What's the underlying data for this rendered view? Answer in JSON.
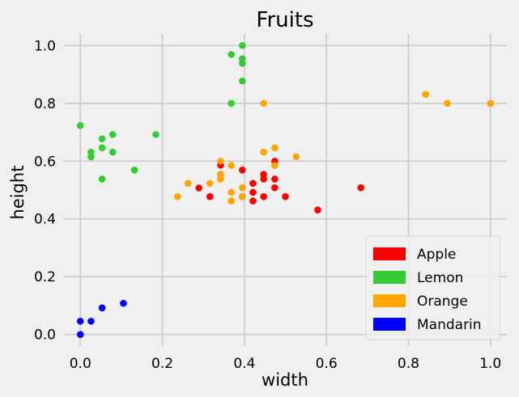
{
  "chart_data": {
    "type": "scatter",
    "title": "Fruits",
    "xlabel": "width",
    "ylabel": "height",
    "xlim": [
      -0.04,
      1.04
    ],
    "ylim": [
      -0.04,
      1.04
    ],
    "xticks": [
      0.0,
      0.2,
      0.4,
      0.6,
      0.8,
      1.0
    ],
    "xtick_labels": [
      "0.0",
      "0.2",
      "0.4",
      "0.6",
      "0.8",
      "1.0"
    ],
    "yticks": [
      0.0,
      0.2,
      0.4,
      0.6,
      0.8,
      1.0
    ],
    "ytick_labels": [
      "0.0",
      "0.2",
      "0.4",
      "0.6",
      "0.8",
      "1.0"
    ],
    "grid": true,
    "legend": {
      "placement": "lower-right",
      "entries": [
        {
          "label": "Apple",
          "color": "#ff0000"
        },
        {
          "label": "Lemon",
          "color": "#32cd32"
        },
        {
          "label": "Orange",
          "color": "#ffa500"
        },
        {
          "label": "Mandarin",
          "color": "#0000ff"
        }
      ]
    },
    "series": [
      {
        "name": "Apple",
        "color": "#ff0000",
        "points": [
          [
            0.342,
            0.586
          ],
          [
            0.342,
            0.554
          ],
          [
            0.289,
            0.507
          ],
          [
            0.316,
            0.477
          ],
          [
            0.395,
            0.569
          ],
          [
            0.395,
            0.477
          ],
          [
            0.421,
            0.523
          ],
          [
            0.421,
            0.492
          ],
          [
            0.421,
            0.462
          ],
          [
            0.447,
            0.554
          ],
          [
            0.447,
            0.538
          ],
          [
            0.447,
            0.477
          ],
          [
            0.474,
            0.6
          ],
          [
            0.474,
            0.538
          ],
          [
            0.474,
            0.508
          ],
          [
            0.5,
            0.477
          ],
          [
            0.579,
            0.431
          ],
          [
            0.684,
            0.508
          ]
        ]
      },
      {
        "name": "Lemon",
        "color": "#32cd32",
        "points": [
          [
            0.0,
            0.723
          ],
          [
            0.026,
            0.631
          ],
          [
            0.026,
            0.615
          ],
          [
            0.053,
            0.677
          ],
          [
            0.053,
            0.646
          ],
          [
            0.053,
            0.538
          ],
          [
            0.079,
            0.692
          ],
          [
            0.079,
            0.631
          ],
          [
            0.132,
            0.569
          ],
          [
            0.184,
            0.692
          ],
          [
            0.368,
            0.969
          ],
          [
            0.368,
            0.8
          ],
          [
            0.395,
            1.0
          ],
          [
            0.395,
            0.954
          ],
          [
            0.395,
            0.938
          ],
          [
            0.395,
            0.877
          ]
        ]
      },
      {
        "name": "Orange",
        "color": "#ffa500",
        "points": [
          [
            0.237,
            0.477
          ],
          [
            0.263,
            0.523
          ],
          [
            0.316,
            0.523
          ],
          [
            0.342,
            0.6
          ],
          [
            0.342,
            0.554
          ],
          [
            0.342,
            0.538
          ],
          [
            0.368,
            0.585
          ],
          [
            0.368,
            0.492
          ],
          [
            0.368,
            0.462
          ],
          [
            0.395,
            0.508
          ],
          [
            0.395,
            0.477
          ],
          [
            0.447,
            0.8
          ],
          [
            0.447,
            0.631
          ],
          [
            0.474,
            0.646
          ],
          [
            0.474,
            0.585
          ],
          [
            0.526,
            0.615
          ],
          [
            0.842,
            0.831
          ],
          [
            0.895,
            0.8
          ],
          [
            1.0,
            0.8
          ]
        ]
      },
      {
        "name": "Mandarin",
        "color": "#0000ff",
        "points": [
          [
            0.0,
            0.046
          ],
          [
            0.0,
            0.0
          ],
          [
            0.026,
            0.046
          ],
          [
            0.053,
            0.092
          ],
          [
            0.105,
            0.108
          ]
        ]
      }
    ]
  }
}
